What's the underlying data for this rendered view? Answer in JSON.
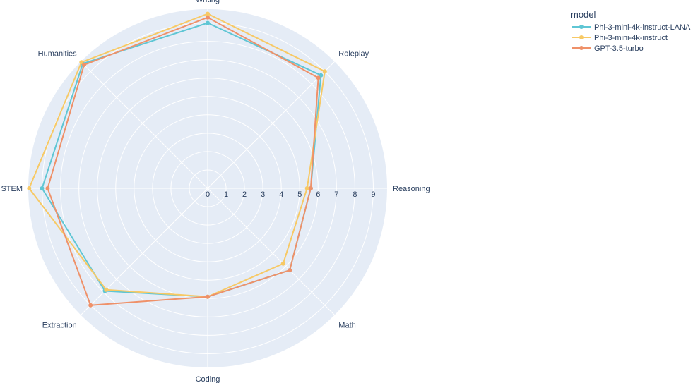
{
  "chart_data": {
    "type": "radar",
    "categories": [
      "Writing",
      "Roleplay",
      "Reasoning",
      "Math",
      "Coding",
      "Extraction",
      "STEM",
      "Humanities"
    ],
    "radial_ticks": [
      "0",
      "1",
      "2",
      "3",
      "4",
      "5",
      "6",
      "7",
      "8",
      "9"
    ],
    "radial_range": [
      0,
      9.75
    ],
    "grid": true,
    "legend_title": "model",
    "legend_position": "top-right",
    "series": [
      {
        "name": "Phi-3-mini-4k-instruct-LANA",
        "color": "#5fc6d4",
        "values": [
          9.0,
          8.7,
          5.6,
          6.3,
          5.9,
          7.9,
          9.0,
          9.6
        ]
      },
      {
        "name": "Phi-3-mini-4k-instruct",
        "color": "#f7c965",
        "values": [
          9.5,
          9.0,
          5.4,
          5.8,
          5.9,
          7.8,
          9.7,
          9.7
        ]
      },
      {
        "name": "GPT-3.5-turbo",
        "color": "#ef9169",
        "values": [
          9.3,
          8.5,
          5.6,
          6.3,
          5.9,
          9.0,
          8.7,
          9.5
        ]
      }
    ]
  }
}
